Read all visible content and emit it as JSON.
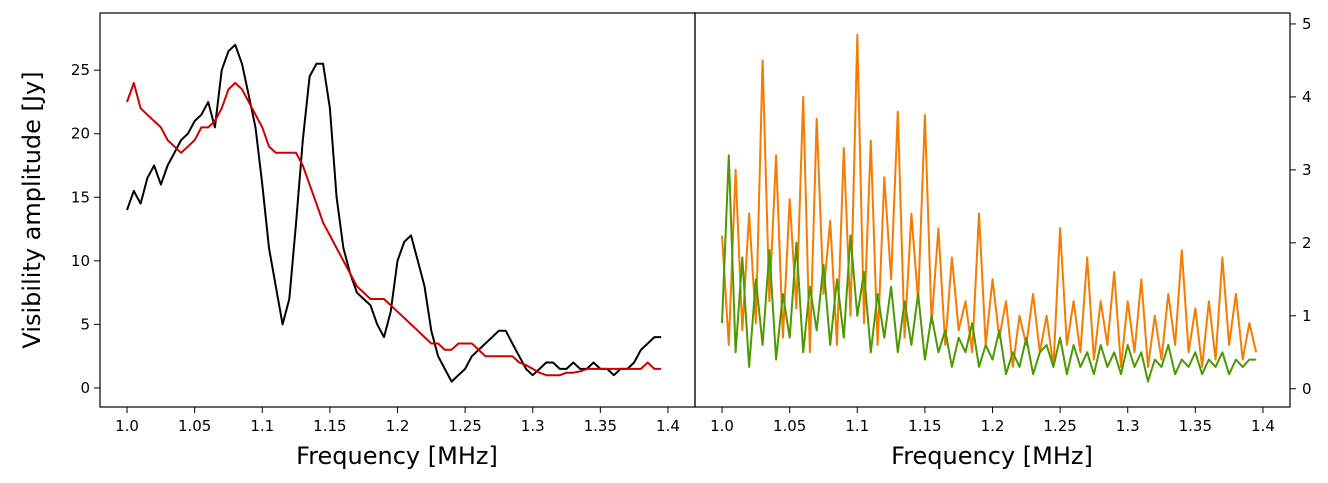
{
  "chart_data": [
    {
      "type": "line",
      "panel": "left",
      "title": "",
      "xlabel": "Frequency [MHz]",
      "ylabel": "Visibility amplitude [Jy]",
      "xlim": [
        0.98,
        1.42
      ],
      "ylim": [
        -1.5,
        29.5
      ],
      "x_ticks": [
        1.0,
        1.05,
        1.1,
        1.15,
        1.2,
        1.25,
        1.3,
        1.35,
        1.4
      ],
      "x_tick_labels": [
        "1.0",
        "1.05",
        "1.1",
        "1.15",
        "1.2",
        "1.25",
        "1.3",
        "1.35",
        "1.4"
      ],
      "y_ticks": [
        0,
        5,
        10,
        15,
        20,
        25
      ],
      "y_tick_labels": [
        "0",
        "5",
        "10",
        "15",
        "20",
        "25"
      ],
      "y_axis_side": "left",
      "grid": false,
      "series": [
        {
          "color": "#000000",
          "x": [
            1.0,
            1.005,
            1.01,
            1.015,
            1.02,
            1.025,
            1.03,
            1.035,
            1.04,
            1.045,
            1.05,
            1.055,
            1.06,
            1.065,
            1.07,
            1.075,
            1.08,
            1.085,
            1.09,
            1.095,
            1.1,
            1.105,
            1.11,
            1.115,
            1.12,
            1.125,
            1.13,
            1.135,
            1.14,
            1.145,
            1.15,
            1.155,
            1.16,
            1.165,
            1.17,
            1.175,
            1.18,
            1.185,
            1.19,
            1.195,
            1.2,
            1.205,
            1.21,
            1.215,
            1.22,
            1.225,
            1.23,
            1.235,
            1.24,
            1.245,
            1.25,
            1.255,
            1.26,
            1.265,
            1.27,
            1.275,
            1.28,
            1.285,
            1.29,
            1.295,
            1.3,
            1.305,
            1.31,
            1.315,
            1.32,
            1.325,
            1.33,
            1.335,
            1.34,
            1.345,
            1.35,
            1.355,
            1.36,
            1.365,
            1.37,
            1.375,
            1.38,
            1.385,
            1.39,
            1.395
          ],
          "values": [
            14,
            15.5,
            14.5,
            16.5,
            17.5,
            16,
            17.5,
            18.5,
            19.5,
            20,
            21,
            21.5,
            22.5,
            20.5,
            25,
            26.5,
            27,
            25.5,
            23,
            20.5,
            16,
            11,
            8,
            5,
            7,
            13,
            19.5,
            24.5,
            25.5,
            25.5,
            22,
            15,
            11,
            9,
            7.5,
            7,
            6.5,
            5,
            4,
            6,
            10,
            11.5,
            12,
            10,
            8,
            4.5,
            2.5,
            1.5,
            0.5,
            1,
            1.5,
            2.5,
            3,
            3.5,
            4,
            4.5,
            4.5,
            3.5,
            2.5,
            1.5,
            1,
            1.5,
            2,
            2,
            1.5,
            1.5,
            2,
            1.5,
            1.5,
            2,
            1.5,
            1.5,
            1,
            1.5,
            1.5,
            2,
            3,
            3.5,
            4,
            4
          ]
        },
        {
          "color": "#cc0000",
          "x": [
            1.0,
            1.005,
            1.01,
            1.015,
            1.02,
            1.025,
            1.03,
            1.035,
            1.04,
            1.045,
            1.05,
            1.055,
            1.06,
            1.065,
            1.07,
            1.075,
            1.08,
            1.085,
            1.09,
            1.095,
            1.1,
            1.105,
            1.11,
            1.115,
            1.12,
            1.125,
            1.13,
            1.135,
            1.14,
            1.145,
            1.15,
            1.155,
            1.16,
            1.165,
            1.17,
            1.175,
            1.18,
            1.185,
            1.19,
            1.195,
            1.2,
            1.205,
            1.21,
            1.215,
            1.22,
            1.225,
            1.23,
            1.235,
            1.24,
            1.245,
            1.25,
            1.255,
            1.26,
            1.265,
            1.27,
            1.275,
            1.28,
            1.285,
            1.29,
            1.295,
            1.3,
            1.305,
            1.31,
            1.315,
            1.32,
            1.325,
            1.33,
            1.335,
            1.34,
            1.345,
            1.35,
            1.355,
            1.36,
            1.365,
            1.37,
            1.375,
            1.38,
            1.385,
            1.39,
            1.395
          ],
          "values": [
            22.5,
            24,
            22,
            21.5,
            21,
            20.5,
            19.5,
            19,
            18.5,
            19,
            19.5,
            20.5,
            20.5,
            21,
            22,
            23.5,
            24,
            23.5,
            22.5,
            21.5,
            20.5,
            19,
            18.5,
            18.5,
            18.5,
            18.5,
            17.5,
            16,
            14.5,
            13,
            12,
            11,
            10,
            9,
            8,
            7.5,
            7,
            7,
            7,
            6.5,
            6,
            5.5,
            5,
            4.5,
            4,
            3.5,
            3.5,
            3,
            3,
            3.5,
            3.5,
            3.5,
            3,
            2.5,
            2.5,
            2.5,
            2.5,
            2.5,
            2,
            1.8,
            1.5,
            1.2,
            1,
            1,
            1,
            1.2,
            1.2,
            1.3,
            1.5,
            1.5,
            1.5,
            1.5,
            1.5,
            1.5,
            1.5,
            1.5,
            1.5,
            2,
            1.5,
            1.5
          ]
        }
      ]
    },
    {
      "type": "line",
      "panel": "right",
      "title": "",
      "xlabel": "Frequency [MHz]",
      "ylabel": "",
      "xlim": [
        0.98,
        1.42
      ],
      "ylim": [
        -0.25,
        5.15
      ],
      "x_ticks": [
        1.0,
        1.05,
        1.1,
        1.15,
        1.2,
        1.25,
        1.3,
        1.35,
        1.4
      ],
      "x_tick_labels": [
        "1.0",
        "1.05",
        "1.1",
        "1.15",
        "1.2",
        "1.25",
        "1.3",
        "1.35",
        "1.4"
      ],
      "y_ticks": [
        0,
        1,
        2,
        3,
        4,
        5
      ],
      "y_tick_labels": [
        "0",
        "1",
        "2",
        "3",
        "4",
        "5"
      ],
      "y_axis_side": "right",
      "grid": false,
      "series": [
        {
          "color": "#f57c00",
          "x": [
            1.0,
            1.005,
            1.01,
            1.015,
            1.02,
            1.025,
            1.03,
            1.035,
            1.04,
            1.045,
            1.05,
            1.055,
            1.06,
            1.065,
            1.07,
            1.075,
            1.08,
            1.085,
            1.09,
            1.095,
            1.1,
            1.105,
            1.11,
            1.115,
            1.12,
            1.125,
            1.13,
            1.135,
            1.14,
            1.145,
            1.15,
            1.155,
            1.16,
            1.165,
            1.17,
            1.175,
            1.18,
            1.185,
            1.19,
            1.195,
            1.2,
            1.205,
            1.21,
            1.215,
            1.22,
            1.225,
            1.23,
            1.235,
            1.24,
            1.245,
            1.25,
            1.255,
            1.26,
            1.265,
            1.27,
            1.275,
            1.28,
            1.285,
            1.29,
            1.295,
            1.3,
            1.305,
            1.31,
            1.315,
            1.32,
            1.325,
            1.33,
            1.335,
            1.34,
            1.345,
            1.35,
            1.355,
            1.36,
            1.365,
            1.37,
            1.375,
            1.38,
            1.385,
            1.39,
            1.395
          ],
          "values": [
            2.1,
            0.6,
            3.0,
            0.8,
            2.4,
            0.9,
            4.5,
            1.2,
            3.2,
            0.7,
            2.6,
            1.1,
            4.0,
            0.5,
            3.7,
            1.3,
            2.3,
            0.6,
            3.3,
            1.0,
            4.85,
            0.9,
            3.4,
            0.6,
            2.9,
            1.5,
            3.8,
            0.7,
            2.4,
            1.2,
            3.75,
            0.9,
            2.2,
            0.6,
            1.8,
            0.8,
            1.2,
            0.5,
            2.4,
            0.6,
            1.5,
            0.7,
            1.2,
            0.3,
            1.0,
            0.6,
            1.3,
            0.5,
            1.0,
            0.3,
            2.2,
            0.6,
            1.2,
            0.5,
            1.8,
            0.4,
            1.2,
            0.6,
            1.6,
            0.3,
            1.2,
            0.5,
            1.5,
            0.3,
            1.0,
            0.4,
            1.3,
            0.6,
            1.9,
            0.5,
            1.1,
            0.3,
            1.2,
            0.4,
            1.8,
            0.6,
            1.3,
            0.4,
            0.9,
            0.5
          ]
        },
        {
          "color": "#4c9a00",
          "x": [
            1.0,
            1.005,
            1.01,
            1.015,
            1.02,
            1.025,
            1.03,
            1.035,
            1.04,
            1.045,
            1.05,
            1.055,
            1.06,
            1.065,
            1.07,
            1.075,
            1.08,
            1.085,
            1.09,
            1.095,
            1.1,
            1.105,
            1.11,
            1.115,
            1.12,
            1.125,
            1.13,
            1.135,
            1.14,
            1.145,
            1.15,
            1.155,
            1.16,
            1.165,
            1.17,
            1.175,
            1.18,
            1.185,
            1.19,
            1.195,
            1.2,
            1.205,
            1.21,
            1.215,
            1.22,
            1.225,
            1.23,
            1.235,
            1.24,
            1.245,
            1.25,
            1.255,
            1.26,
            1.265,
            1.27,
            1.275,
            1.28,
            1.285,
            1.29,
            1.295,
            1.3,
            1.305,
            1.31,
            1.315,
            1.32,
            1.325,
            1.33,
            1.335,
            1.34,
            1.345,
            1.35,
            1.355,
            1.36,
            1.365,
            1.37,
            1.375,
            1.38,
            1.385,
            1.39,
            1.395
          ],
          "values": [
            0.9,
            3.2,
            0.5,
            1.8,
            0.3,
            1.5,
            0.6,
            1.9,
            0.4,
            1.3,
            0.7,
            2.0,
            0.5,
            1.4,
            0.8,
            1.7,
            0.6,
            1.5,
            0.7,
            2.1,
            1.0,
            1.6,
            0.5,
            1.3,
            0.7,
            1.4,
            0.5,
            1.2,
            0.6,
            1.3,
            0.4,
            1.0,
            0.5,
            0.8,
            0.3,
            0.7,
            0.5,
            0.9,
            0.3,
            0.6,
            0.4,
            0.8,
            0.2,
            0.5,
            0.3,
            0.7,
            0.2,
            0.5,
            0.6,
            0.3,
            0.7,
            0.2,
            0.6,
            0.3,
            0.5,
            0.2,
            0.6,
            0.3,
            0.5,
            0.2,
            0.6,
            0.3,
            0.5,
            0.1,
            0.4,
            0.3,
            0.6,
            0.2,
            0.4,
            0.3,
            0.5,
            0.2,
            0.4,
            0.3,
            0.5,
            0.2,
            0.4,
            0.3,
            0.4,
            0.4
          ]
        }
      ]
    }
  ]
}
